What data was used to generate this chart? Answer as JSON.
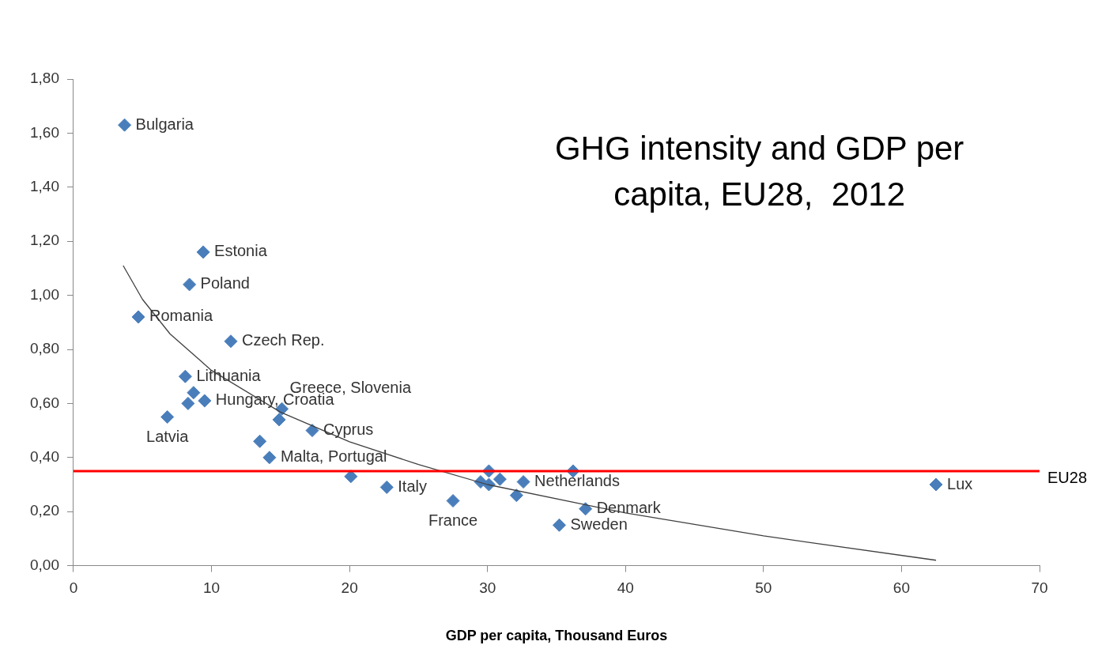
{
  "chart_data": {
    "type": "scatter",
    "title": "GHG intensity and GDP per capita, EU28,  2012",
    "xlabel": "GDP per capita, Thousand Euros",
    "xlim": [
      0,
      70
    ],
    "xticks": [
      0,
      10,
      20,
      30,
      40,
      50,
      60,
      70
    ],
    "ylim": [
      0,
      1.8
    ],
    "yticks": [
      {
        "value": 0,
        "label": "0,00"
      },
      {
        "value": 0.2,
        "label": "0,20"
      },
      {
        "value": 0.4,
        "label": "0,40"
      },
      {
        "value": 0.6,
        "label": "0,60"
      },
      {
        "value": 0.8,
        "label": "0,80"
      },
      {
        "value": 1,
        "label": "1,00"
      },
      {
        "value": 1.2,
        "label": "1,20"
      },
      {
        "value": 1.4,
        "label": "1,40"
      },
      {
        "value": 1.6,
        "label": "1,60"
      },
      {
        "value": 1.8,
        "label": "1,80"
      }
    ],
    "grid": false,
    "legend": false,
    "marker": "diamond",
    "series": [
      {
        "type": "scatter",
        "color": "#4a7ebb",
        "x": [
          3.7,
          9.4,
          8.4,
          4.7,
          11.4,
          8.1,
          8.7,
          8.3,
          9.5,
          6.8,
          15.1,
          14.9,
          17.3,
          13.5,
          14.2,
          20.1,
          22.7,
          27.5,
          30.1,
          29.5,
          30.9,
          30.1,
          32.6,
          32.1,
          36.2,
          37.1,
          35.2,
          62.5
        ],
        "values": [
          1.63,
          1.16,
          1.04,
          0.92,
          0.83,
          0.7,
          0.64,
          0.6,
          0.61,
          0.55,
          0.58,
          0.54,
          0.5,
          0.46,
          0.4,
          0.33,
          0.29,
          0.24,
          0.35,
          0.31,
          0.32,
          0.3,
          0.31,
          0.26,
          0.35,
          0.21,
          0.15,
          0.3
        ]
      },
      {
        "type": "line",
        "color": "#404040",
        "marker": "none",
        "x": [
          3.6,
          5,
          7,
          10,
          15,
          20,
          25,
          30,
          40,
          50,
          62.5
        ],
        "values": [
          1.11,
          0.985,
          0.857,
          0.722,
          0.568,
          0.458,
          0.374,
          0.3,
          0.195,
          0.11,
          0.02
        ]
      }
    ],
    "ref_lines": [
      {
        "axis": "y",
        "value": 0.35,
        "label": "EU28",
        "color": "#ff0000"
      }
    ],
    "annotations": [
      {
        "text": "Bulgaria",
        "x": 3.7,
        "y": 1.63
      },
      {
        "text": "Estonia",
        "x": 9.4,
        "y": 1.16
      },
      {
        "text": "Poland",
        "x": 8.4,
        "y": 1.04
      },
      {
        "text": "Romania",
        "x": 4.7,
        "y": 0.92
      },
      {
        "text": "Czech Rep.",
        "x": 11.4,
        "y": 0.83
      },
      {
        "text": "Lithuania",
        "x": 8.1,
        "y": 0.7
      },
      {
        "text": "Hungary, Croatia",
        "x": 9.5,
        "y": 0.61
      },
      {
        "text": "Greece, Slovenia",
        "x": 15.1,
        "y": 0.58
      },
      {
        "text": "Cyprus",
        "x": 17.3,
        "y": 0.5
      },
      {
        "text": "Latvia",
        "x": 6.8,
        "y": 0.55
      },
      {
        "text": "Malta, Portugal",
        "x": 14.2,
        "y": 0.4
      },
      {
        "text": "Italy",
        "x": 22.7,
        "y": 0.29
      },
      {
        "text": "France",
        "x": 27.5,
        "y": 0.24
      },
      {
        "text": "Netherlands",
        "x": 32.6,
        "y": 0.31
      },
      {
        "text": "Denmark",
        "x": 37.1,
        "y": 0.21
      },
      {
        "text": "Sweden",
        "x": 35.2,
        "y": 0.15
      },
      {
        "text": "Lux",
        "x": 62.5,
        "y": 0.3
      }
    ]
  }
}
